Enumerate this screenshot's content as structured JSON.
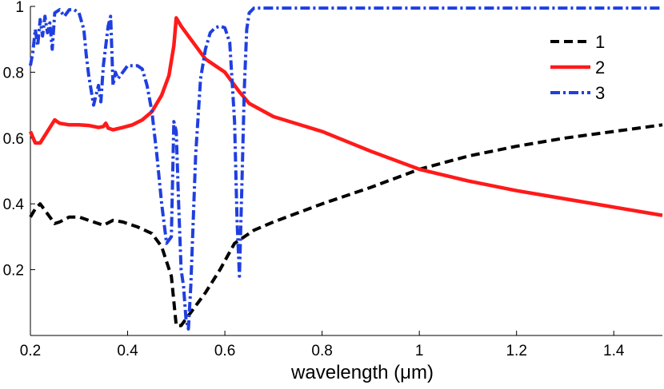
{
  "chart_data": {
    "type": "line",
    "title": "",
    "xlabel": "wavelength (μm)",
    "ylabel": "",
    "xlim": [
      0.2,
      1.5
    ],
    "ylim": [
      0.0,
      1.0
    ],
    "grid": false,
    "legend_position": "top-right",
    "x_ticks": [
      0.2,
      0.4,
      0.6,
      0.8,
      1.0,
      1.2,
      1.4
    ],
    "x_tick_labels": [
      "0.2",
      "0.4",
      "0.6",
      "0.8",
      "1",
      "1.2",
      "1.4"
    ],
    "y_ticks": [
      0.2,
      0.4,
      0.6,
      0.8,
      1.0
    ],
    "y_tick_labels": [
      "0.2",
      "0.4",
      "0.6",
      "0.8",
      "1"
    ],
    "series": [
      {
        "name": "1",
        "color": "#000000",
        "style": "dashed",
        "points": [
          [
            0.2,
            0.36
          ],
          [
            0.21,
            0.385
          ],
          [
            0.22,
            0.4
          ],
          [
            0.23,
            0.38
          ],
          [
            0.24,
            0.36
          ],
          [
            0.25,
            0.34
          ],
          [
            0.26,
            0.345
          ],
          [
            0.28,
            0.36
          ],
          [
            0.3,
            0.36
          ],
          [
            0.33,
            0.345
          ],
          [
            0.35,
            0.335
          ],
          [
            0.37,
            0.35
          ],
          [
            0.39,
            0.345
          ],
          [
            0.42,
            0.33
          ],
          [
            0.45,
            0.31
          ],
          [
            0.47,
            0.27
          ],
          [
            0.49,
            0.18
          ],
          [
            0.5,
            0.03
          ],
          [
            0.51,
            0.03
          ],
          [
            0.53,
            0.07
          ],
          [
            0.56,
            0.13
          ],
          [
            0.59,
            0.2
          ],
          [
            0.62,
            0.28
          ],
          [
            0.66,
            0.32
          ],
          [
            0.7,
            0.345
          ],
          [
            0.8,
            0.4
          ],
          [
            0.9,
            0.45
          ],
          [
            1.0,
            0.505
          ],
          [
            1.1,
            0.545
          ],
          [
            1.2,
            0.575
          ],
          [
            1.3,
            0.6
          ],
          [
            1.4,
            0.62
          ],
          [
            1.5,
            0.64
          ]
        ]
      },
      {
        "name": "2",
        "color": "#ff1a1a",
        "style": "solid",
        "points": [
          [
            0.2,
            0.62
          ],
          [
            0.21,
            0.585
          ],
          [
            0.22,
            0.585
          ],
          [
            0.235,
            0.62
          ],
          [
            0.25,
            0.655
          ],
          [
            0.26,
            0.645
          ],
          [
            0.28,
            0.64
          ],
          [
            0.3,
            0.64
          ],
          [
            0.32,
            0.638
          ],
          [
            0.34,
            0.632
          ],
          [
            0.35,
            0.635
          ],
          [
            0.355,
            0.645
          ],
          [
            0.36,
            0.63
          ],
          [
            0.37,
            0.625
          ],
          [
            0.39,
            0.632
          ],
          [
            0.41,
            0.64
          ],
          [
            0.43,
            0.655
          ],
          [
            0.45,
            0.68
          ],
          [
            0.47,
            0.73
          ],
          [
            0.485,
            0.79
          ],
          [
            0.495,
            0.88
          ],
          [
            0.5,
            0.965
          ],
          [
            0.51,
            0.94
          ],
          [
            0.53,
            0.9
          ],
          [
            0.56,
            0.84
          ],
          [
            0.6,
            0.8
          ],
          [
            0.63,
            0.74
          ],
          [
            0.65,
            0.705
          ],
          [
            0.7,
            0.665
          ],
          [
            0.8,
            0.62
          ],
          [
            0.9,
            0.56
          ],
          [
            1.0,
            0.505
          ],
          [
            1.1,
            0.47
          ],
          [
            1.2,
            0.44
          ],
          [
            1.3,
            0.415
          ],
          [
            1.4,
            0.39
          ],
          [
            1.5,
            0.365
          ]
        ]
      },
      {
        "name": "3",
        "color": "#1f3fe0",
        "style": "dash-dot",
        "points": [
          [
            0.2,
            0.82
          ],
          [
            0.205,
            0.86
          ],
          [
            0.21,
            0.93
          ],
          [
            0.215,
            0.88
          ],
          [
            0.22,
            0.96
          ],
          [
            0.225,
            0.91
          ],
          [
            0.23,
            0.97
          ],
          [
            0.235,
            0.92
          ],
          [
            0.24,
            0.95
          ],
          [
            0.245,
            0.87
          ],
          [
            0.25,
            0.98
          ],
          [
            0.26,
            0.99
          ],
          [
            0.27,
            0.97
          ],
          [
            0.28,
            0.99
          ],
          [
            0.29,
            0.99
          ],
          [
            0.3,
            0.98
          ],
          [
            0.31,
            0.93
          ],
          [
            0.315,
            0.85
          ],
          [
            0.32,
            0.79
          ],
          [
            0.33,
            0.7
          ],
          [
            0.335,
            0.73
          ],
          [
            0.34,
            0.76
          ],
          [
            0.345,
            0.71
          ],
          [
            0.35,
            0.82
          ],
          [
            0.355,
            0.88
          ],
          [
            0.36,
            0.94
          ],
          [
            0.365,
            0.97
          ],
          [
            0.37,
            0.76
          ],
          [
            0.375,
            0.8
          ],
          [
            0.38,
            0.78
          ],
          [
            0.39,
            0.8
          ],
          [
            0.4,
            0.82
          ],
          [
            0.41,
            0.82
          ],
          [
            0.42,
            0.82
          ],
          [
            0.43,
            0.81
          ],
          [
            0.44,
            0.76
          ],
          [
            0.45,
            0.68
          ],
          [
            0.46,
            0.55
          ],
          [
            0.47,
            0.4
          ],
          [
            0.48,
            0.28
          ],
          [
            0.49,
            0.3
          ],
          [
            0.495,
            0.65
          ],
          [
            0.5,
            0.62
          ],
          [
            0.505,
            0.4
          ],
          [
            0.51,
            0.2
          ],
          [
            0.515,
            0.15
          ],
          [
            0.52,
            0.05
          ],
          [
            0.525,
            0.02
          ],
          [
            0.53,
            0.15
          ],
          [
            0.54,
            0.55
          ],
          [
            0.55,
            0.78
          ],
          [
            0.56,
            0.87
          ],
          [
            0.57,
            0.92
          ],
          [
            0.58,
            0.935
          ],
          [
            0.59,
            0.94
          ],
          [
            0.6,
            0.935
          ],
          [
            0.61,
            0.89
          ],
          [
            0.62,
            0.65
          ],
          [
            0.625,
            0.35
          ],
          [
            0.63,
            0.18
          ],
          [
            0.635,
            0.45
          ],
          [
            0.64,
            0.75
          ],
          [
            0.645,
            0.93
          ],
          [
            0.65,
            0.98
          ],
          [
            0.66,
            0.995
          ],
          [
            0.7,
            0.995
          ],
          [
            0.8,
            0.995
          ],
          [
            1.0,
            0.995
          ],
          [
            1.2,
            0.995
          ],
          [
            1.5,
            0.995
          ]
        ]
      }
    ]
  }
}
